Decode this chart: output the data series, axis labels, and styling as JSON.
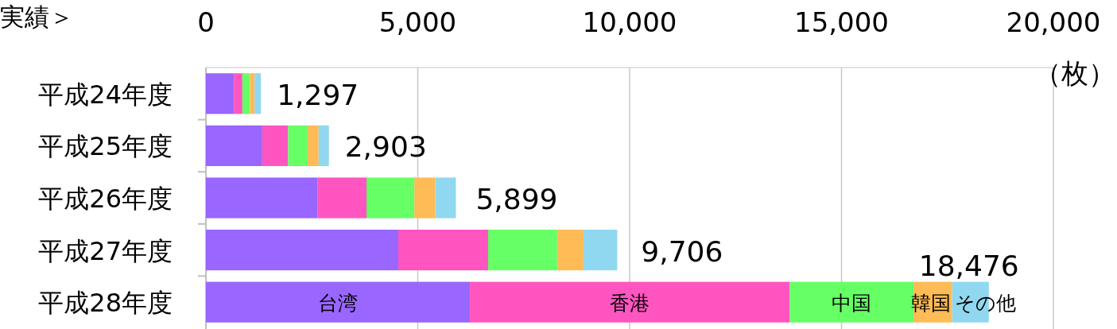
{
  "chart_data": {
    "type": "bar",
    "orientation": "horizontal",
    "stacked": true,
    "title": "実績＞",
    "xlabel": "（枚）",
    "categories": [
      "平成24年度",
      "平成25年度",
      "平成26年度",
      "平成27年度",
      "平成28年度"
    ],
    "series": [
      {
        "name": "台湾",
        "color": "#9966ff",
        "values": [
          660,
          1330,
          2640,
          4540,
          6230
        ]
      },
      {
        "name": "香港",
        "color": "#ff55c0",
        "values": [
          200,
          610,
          1150,
          2120,
          7550
        ]
      },
      {
        "name": "中国",
        "color": "#66ff66",
        "values": [
          180,
          460,
          1130,
          1630,
          2920
        ]
      },
      {
        "name": "韓国",
        "color": "#ffbb55",
        "values": [
          110,
          260,
          490,
          620,
          910
        ]
      },
      {
        "name": "その他",
        "color": "#90d8f0",
        "values": [
          147,
          243,
          489,
          796,
          866
        ]
      }
    ],
    "totals": [
      "1,297",
      "2,903",
      "5,899",
      "9,706",
      "18,476"
    ],
    "xlim": [
      0,
      20000
    ],
    "xticks": [
      {
        "value": 0,
        "label": "0"
      },
      {
        "value": 5000,
        "label": "5,000"
      },
      {
        "value": 10000,
        "label": "10,000"
      },
      {
        "value": 15000,
        "label": "15,000"
      },
      {
        "value": 20000,
        "label": "20,000"
      }
    ],
    "grid": "x"
  }
}
